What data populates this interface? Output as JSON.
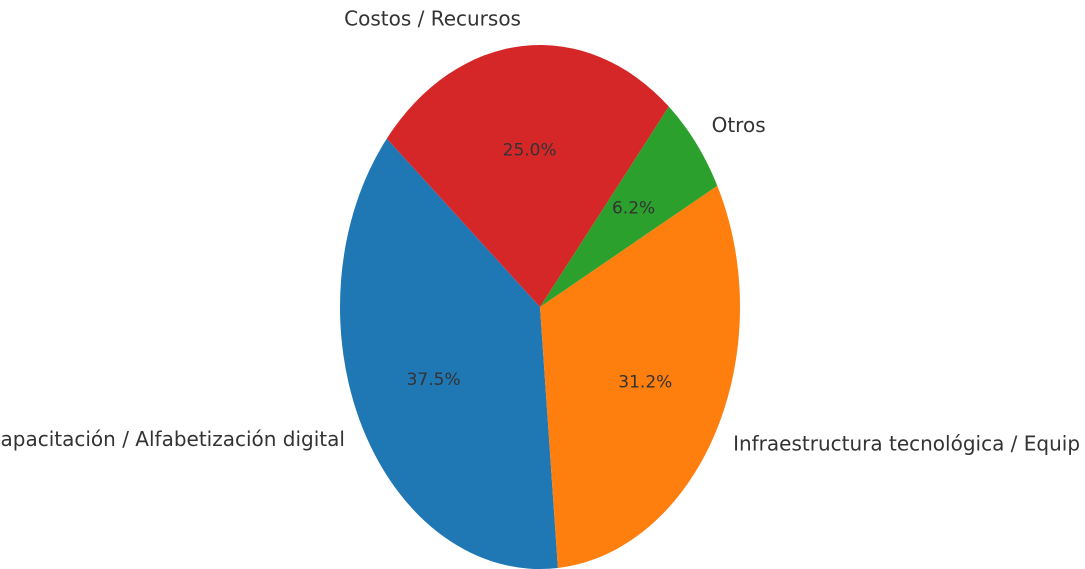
{
  "chart_data": {
    "type": "pie",
    "categories": [
      "apacitación / Alfabetización digital",
      "Infraestructura tecnológica / Equip",
      "Otros",
      "Costos / Recursos"
    ],
    "values": [
      37.5,
      31.2,
      6.2,
      25.0
    ],
    "value_labels": [
      "37.5%",
      "31.2%",
      "6.2%",
      "25.0%"
    ],
    "colors": [
      "#1f77b4",
      "#ff7f0e",
      "#2ca02c",
      "#d62728"
    ]
  }
}
